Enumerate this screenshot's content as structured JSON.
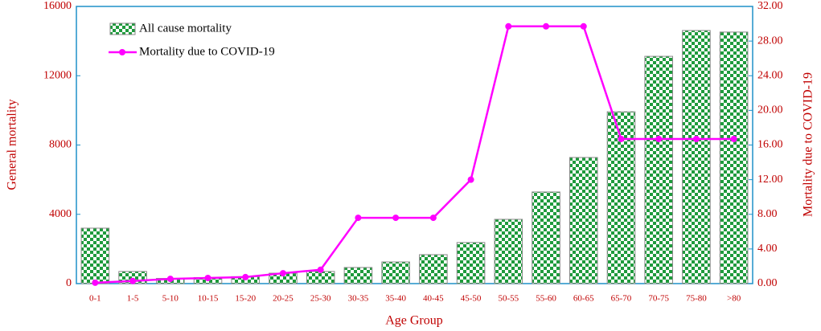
{
  "chart_data": {
    "type": "bar",
    "x_label": "Age Group",
    "y_label": "General mortality",
    "y2_label": "Mortality due to COVID-19",
    "categories": [
      "0-1",
      "1-5",
      "5-10",
      "10-15",
      "15-20",
      "20-25",
      "25-30",
      "30-35",
      "35-40",
      "40-45",
      "45-50",
      "50-55",
      "55-60",
      "60-65",
      "65-70",
      "70-75",
      "75-80",
      ">80"
    ],
    "series": [
      {
        "name": "All cause mortality",
        "type": "bar",
        "color": "#1e9a3c",
        "values": [
          3200,
          700,
          300,
          350,
          400,
          600,
          700,
          930,
          1250,
          1670,
          2370,
          3710,
          5290,
          7280,
          9920,
          13120,
          14610,
          14520
        ]
      },
      {
        "name": "Mortality due to COVID-19",
        "type": "line",
        "axis": "y2",
        "color": "#ff00ff",
        "values": [
          0.1,
          0.3,
          0.55,
          0.65,
          0.75,
          1.2,
          1.6,
          7.6,
          7.6,
          7.6,
          12,
          29.7,
          29.7,
          29.7,
          16.7,
          16.7,
          16.7,
          16.7
        ]
      }
    ],
    "ylim": [
      0,
      16000
    ],
    "yticks": [
      0,
      4000,
      8000,
      12000,
      16000
    ],
    "y2lim": [
      0,
      32
    ],
    "y2ticks": [
      {
        "value": 0,
        "label": "0.00"
      },
      {
        "value": 4,
        "label": "4.00"
      },
      {
        "value": 8,
        "label": "8.00"
      },
      {
        "value": 12,
        "label": "12.00"
      },
      {
        "value": 16,
        "label": "16.00"
      },
      {
        "value": 20,
        "label": "20.00"
      },
      {
        "value": 24,
        "label": "24.00"
      },
      {
        "value": 28,
        "label": "28.00"
      },
      {
        "value": 32,
        "label": "32.00"
      }
    ],
    "grid": false,
    "legend": "top-left"
  }
}
